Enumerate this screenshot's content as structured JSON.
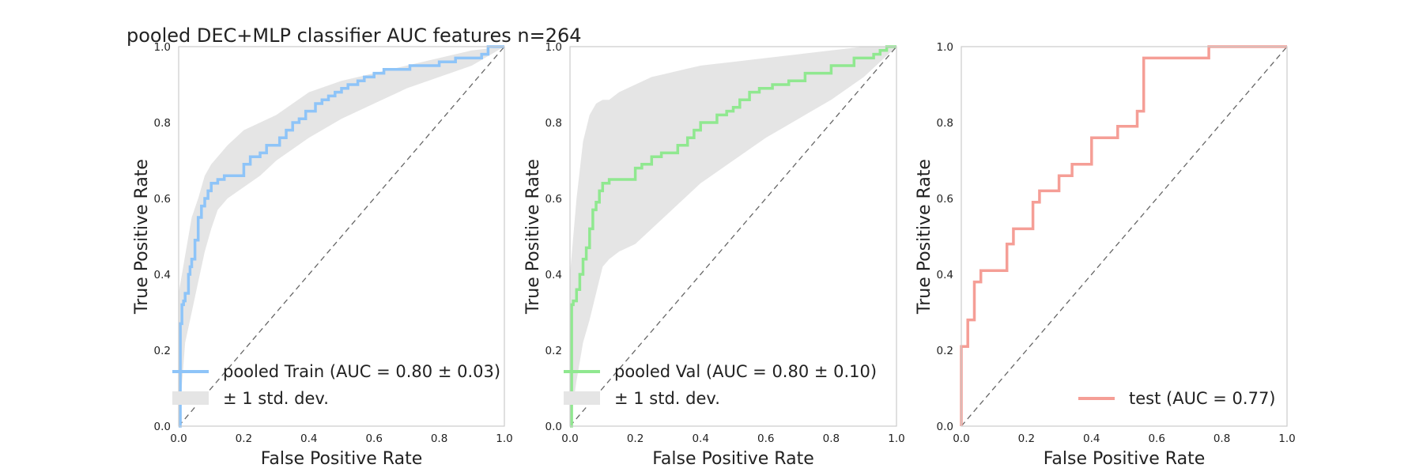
{
  "figure": {
    "title": "pooled DEC+MLP classifier AUC features n=264"
  },
  "chart_data": [
    {
      "type": "line",
      "xlabel": "False Positive Rate",
      "ylabel": "True Positive Rate",
      "xlim": [
        0,
        1
      ],
      "ylim": [
        0,
        1
      ],
      "xticks": [
        "0.0",
        "0.2",
        "0.4",
        "0.6",
        "0.8",
        "1.0"
      ],
      "yticks": [
        "0.0",
        "0.2",
        "0.4",
        "0.6",
        "0.8",
        "1.0"
      ],
      "grid": false,
      "legend_position": "lower-right",
      "diagonal": true,
      "series": [
        {
          "name": "pooled Train (AUC = 0.80 ± 0.03)",
          "color": "#8ec4f8",
          "x": [
            0.0,
            0.005,
            0.005,
            0.01,
            0.01,
            0.015,
            0.015,
            0.02,
            0.02,
            0.03,
            0.03,
            0.035,
            0.035,
            0.04,
            0.04,
            0.05,
            0.05,
            0.06,
            0.06,
            0.07,
            0.07,
            0.08,
            0.08,
            0.09,
            0.09,
            0.1,
            0.1,
            0.12,
            0.12,
            0.14,
            0.14,
            0.2,
            0.2,
            0.22,
            0.22,
            0.25,
            0.25,
            0.27,
            0.27,
            0.31,
            0.31,
            0.33,
            0.33,
            0.35,
            0.35,
            0.37,
            0.37,
            0.39,
            0.39,
            0.42,
            0.42,
            0.44,
            0.44,
            0.46,
            0.46,
            0.48,
            0.48,
            0.5,
            0.5,
            0.52,
            0.52,
            0.55,
            0.55,
            0.57,
            0.57,
            0.6,
            0.6,
            0.63,
            0.63,
            0.71,
            0.71,
            0.8,
            0.8,
            0.85,
            0.85,
            0.93,
            0.93,
            0.95,
            0.95,
            1.0
          ],
          "y": [
            0.0,
            0.0,
            0.27,
            0.27,
            0.32,
            0.32,
            0.33,
            0.33,
            0.35,
            0.35,
            0.4,
            0.4,
            0.42,
            0.42,
            0.44,
            0.44,
            0.49,
            0.49,
            0.55,
            0.55,
            0.58,
            0.58,
            0.6,
            0.6,
            0.62,
            0.62,
            0.64,
            0.64,
            0.65,
            0.65,
            0.66,
            0.66,
            0.69,
            0.69,
            0.71,
            0.71,
            0.72,
            0.72,
            0.74,
            0.74,
            0.76,
            0.76,
            0.78,
            0.78,
            0.8,
            0.8,
            0.81,
            0.81,
            0.83,
            0.83,
            0.85,
            0.85,
            0.86,
            0.86,
            0.87,
            0.87,
            0.88,
            0.88,
            0.89,
            0.89,
            0.9,
            0.9,
            0.91,
            0.91,
            0.92,
            0.92,
            0.93,
            0.93,
            0.94,
            0.94,
            0.95,
            0.95,
            0.96,
            0.96,
            0.97,
            0.97,
            0.98,
            0.98,
            1.0,
            1.0
          ],
          "band": {
            "name": "± 1 std. dev.",
            "color": "#e5e5e5",
            "x": [
              0.0,
              0.02,
              0.04,
              0.06,
              0.08,
              0.1,
              0.12,
              0.15,
              0.2,
              0.25,
              0.3,
              0.35,
              0.4,
              0.5,
              0.6,
              0.7,
              0.8,
              0.9,
              1.0
            ],
            "upper": [
              0.35,
              0.45,
              0.55,
              0.6,
              0.66,
              0.69,
              0.71,
              0.74,
              0.78,
              0.8,
              0.82,
              0.85,
              0.88,
              0.91,
              0.93,
              0.95,
              0.97,
              0.99,
              1.0
            ],
            "lower": [
              0.0,
              0.22,
              0.3,
              0.38,
              0.46,
              0.52,
              0.57,
              0.6,
              0.63,
              0.66,
              0.7,
              0.73,
              0.76,
              0.81,
              0.85,
              0.89,
              0.92,
              0.95,
              1.0
            ]
          }
        }
      ]
    },
    {
      "type": "line",
      "xlabel": "False Positive Rate",
      "ylabel": "True Positive Rate",
      "xlim": [
        0,
        1
      ],
      "ylim": [
        0,
        1
      ],
      "xticks": [
        "0.0",
        "0.2",
        "0.4",
        "0.6",
        "0.8",
        "1.0"
      ],
      "yticks": [
        "0.0",
        "0.2",
        "0.4",
        "0.6",
        "0.8",
        "1.0"
      ],
      "grid": false,
      "legend_position": "lower-right",
      "diagonal": true,
      "series": [
        {
          "name": "pooled Val (AUC = 0.80 ± 0.10)",
          "color": "#90e890",
          "x": [
            0.0,
            0.005,
            0.005,
            0.01,
            0.01,
            0.02,
            0.02,
            0.03,
            0.03,
            0.04,
            0.04,
            0.05,
            0.05,
            0.06,
            0.06,
            0.07,
            0.07,
            0.08,
            0.08,
            0.09,
            0.09,
            0.1,
            0.1,
            0.12,
            0.12,
            0.2,
            0.2,
            0.22,
            0.22,
            0.25,
            0.25,
            0.28,
            0.28,
            0.33,
            0.33,
            0.36,
            0.36,
            0.38,
            0.38,
            0.4,
            0.4,
            0.45,
            0.45,
            0.48,
            0.48,
            0.5,
            0.5,
            0.52,
            0.52,
            0.55,
            0.55,
            0.58,
            0.58,
            0.62,
            0.62,
            0.67,
            0.67,
            0.72,
            0.72,
            0.8,
            0.8,
            0.87,
            0.87,
            0.93,
            0.93,
            0.95,
            0.95,
            0.97,
            0.97,
            1.0
          ],
          "y": [
            0.0,
            0.0,
            0.32,
            0.32,
            0.33,
            0.33,
            0.36,
            0.36,
            0.4,
            0.4,
            0.44,
            0.44,
            0.47,
            0.47,
            0.52,
            0.52,
            0.57,
            0.57,
            0.59,
            0.59,
            0.62,
            0.62,
            0.64,
            0.64,
            0.65,
            0.65,
            0.68,
            0.68,
            0.69,
            0.69,
            0.71,
            0.71,
            0.72,
            0.72,
            0.74,
            0.74,
            0.76,
            0.76,
            0.78,
            0.78,
            0.8,
            0.8,
            0.82,
            0.82,
            0.83,
            0.83,
            0.84,
            0.84,
            0.86,
            0.86,
            0.88,
            0.88,
            0.89,
            0.89,
            0.9,
            0.9,
            0.91,
            0.91,
            0.93,
            0.93,
            0.95,
            0.95,
            0.97,
            0.97,
            0.98,
            0.98,
            0.99,
            0.99,
            1.0,
            1.0
          ],
          "band": {
            "name": "± 1 std. dev.",
            "color": "#e5e5e5",
            "x": [
              0.0,
              0.02,
              0.04,
              0.06,
              0.08,
              0.1,
              0.12,
              0.15,
              0.2,
              0.25,
              0.3,
              0.35,
              0.4,
              0.5,
              0.6,
              0.7,
              0.8,
              0.9,
              1.0
            ],
            "upper": [
              0.4,
              0.6,
              0.75,
              0.82,
              0.85,
              0.86,
              0.86,
              0.88,
              0.9,
              0.92,
              0.93,
              0.94,
              0.95,
              0.96,
              0.97,
              0.98,
              0.99,
              1.0,
              1.0
            ],
            "lower": [
              0.0,
              0.12,
              0.22,
              0.28,
              0.35,
              0.42,
              0.44,
              0.46,
              0.48,
              0.52,
              0.56,
              0.6,
              0.64,
              0.7,
              0.76,
              0.81,
              0.86,
              0.92,
              1.0
            ]
          }
        }
      ]
    },
    {
      "type": "line",
      "xlabel": "False Positive Rate",
      "ylabel": "True Positive Rate",
      "xlim": [
        0,
        1
      ],
      "ylim": [
        0,
        1
      ],
      "xticks": [
        "0.0",
        "0.2",
        "0.4",
        "0.6",
        "0.8",
        "1.0"
      ],
      "yticks": [
        "0.0",
        "0.2",
        "0.4",
        "0.6",
        "0.8",
        "1.0"
      ],
      "grid": false,
      "legend_position": "lower-right",
      "diagonal": true,
      "series": [
        {
          "name": "test (AUC = 0.77)",
          "color": "#f59e96",
          "x": [
            0.0,
            0.0,
            0.02,
            0.02,
            0.04,
            0.04,
            0.06,
            0.06,
            0.14,
            0.14,
            0.16,
            0.16,
            0.22,
            0.22,
            0.24,
            0.24,
            0.3,
            0.3,
            0.34,
            0.34,
            0.4,
            0.4,
            0.48,
            0.48,
            0.54,
            0.54,
            0.56,
            0.56,
            0.76,
            0.76,
            1.0
          ],
          "y": [
            0.0,
            0.21,
            0.21,
            0.28,
            0.28,
            0.38,
            0.38,
            0.41,
            0.41,
            0.48,
            0.48,
            0.52,
            0.52,
            0.59,
            0.59,
            0.62,
            0.62,
            0.66,
            0.66,
            0.69,
            0.69,
            0.76,
            0.76,
            0.79,
            0.79,
            0.83,
            0.83,
            0.97,
            0.97,
            1.0,
            1.0
          ]
        }
      ]
    }
  ]
}
